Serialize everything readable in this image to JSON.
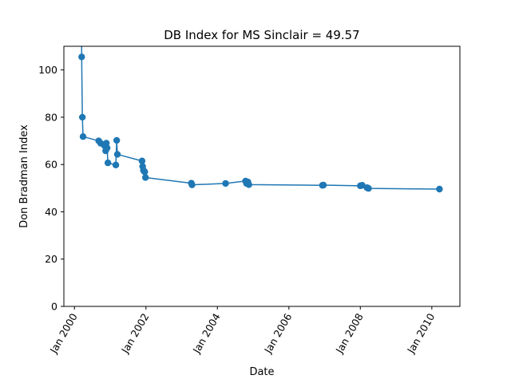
{
  "colors": {
    "line": "#1f77b4",
    "axes": "#000000",
    "background": "#ffffff"
  },
  "chart_data": {
    "type": "line",
    "title": "DB Index for MS Sinclair = 49.57",
    "xlabel": "Date",
    "ylabel": "Don Bradman Index",
    "x_ticks": [
      "Jan 2000",
      "Jan 2002",
      "Jan 2004",
      "Jan 2006",
      "Jan 2008",
      "Jan 2010"
    ],
    "y_ticks": [
      "0",
      "20",
      "40",
      "60",
      "80",
      "100"
    ],
    "x_tick_values": [
      "2000-01-01",
      "2002-01-01",
      "2004-01-01",
      "2006-01-01",
      "2008-01-01",
      "2010-01-01"
    ],
    "y_tick_values": [
      0,
      20,
      40,
      60,
      80,
      100
    ],
    "xlim": [
      "1999-09-15",
      "2010-10-15"
    ],
    "ylim": [
      0,
      110
    ],
    "grid": false,
    "legend": false,
    "marker": "circle",
    "series": [
      {
        "points": [
          [
            "2000-03-10",
            150.0
          ],
          [
            "2000-03-15",
            105.5
          ],
          [
            "2000-03-22",
            80.0
          ],
          [
            "2000-03-29",
            71.8
          ],
          [
            "2000-09-05",
            70.0
          ],
          [
            "2000-09-25",
            69.0
          ],
          [
            "2000-11-03",
            68.0
          ],
          [
            "2000-11-15",
            65.8
          ],
          [
            "2000-11-22",
            69.0
          ],
          [
            "2000-11-30",
            67.0
          ],
          [
            "2000-12-08",
            60.7
          ],
          [
            "2001-02-27",
            59.8
          ],
          [
            "2001-03-08",
            70.2
          ],
          [
            "2001-03-15",
            64.3
          ],
          [
            "2001-11-22",
            61.5
          ],
          [
            "2001-11-28",
            59.2
          ],
          [
            "2001-12-06",
            57.6
          ],
          [
            "2001-12-12",
            57.2
          ],
          [
            "2001-12-20",
            56.9
          ],
          [
            "2001-12-27",
            54.5
          ],
          [
            "2003-04-10",
            52.1
          ],
          [
            "2003-04-17",
            51.4
          ],
          [
            "2004-03-25",
            52.0
          ],
          [
            "2004-10-15",
            53.0
          ],
          [
            "2004-10-25",
            52.0
          ],
          [
            "2004-11-08",
            52.6
          ],
          [
            "2004-11-18",
            51.5
          ],
          [
            "2006-12-10",
            51.2
          ],
          [
            "2006-12-20",
            51.3
          ],
          [
            "2008-01-01",
            51.0
          ],
          [
            "2008-01-20",
            51.2
          ],
          [
            "2008-03-10",
            50.2
          ],
          [
            "2008-03-25",
            49.9
          ],
          [
            "2010-03-20",
            49.6
          ]
        ]
      }
    ]
  }
}
